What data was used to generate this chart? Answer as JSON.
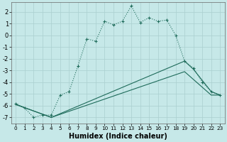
{
  "xlabel": "Humidex (Indice chaleur)",
  "bg_color": "#c6e8e8",
  "grid_color": "#aacfcf",
  "line_color": "#1e6b5a",
  "xlim": [
    -0.5,
    23.5
  ],
  "ylim": [
    -7.5,
    2.8
  ],
  "yticks": [
    2,
    1,
    0,
    -1,
    -2,
    -3,
    -4,
    -5,
    -6,
    -7
  ],
  "xticks": [
    0,
    1,
    2,
    3,
    4,
    5,
    6,
    7,
    8,
    9,
    10,
    11,
    12,
    13,
    14,
    15,
    16,
    17,
    18,
    19,
    20,
    21,
    22,
    23
  ],
  "line1_x": [
    0,
    1,
    2,
    3,
    4,
    5,
    6,
    7,
    8,
    9,
    10,
    11,
    12,
    13,
    14,
    15,
    16,
    17,
    18,
    19,
    20,
    21,
    22,
    23
  ],
  "line1_y": [
    -5.8,
    -6.2,
    -7.0,
    -6.8,
    -6.8,
    -5.1,
    -4.8,
    -2.6,
    -0.3,
    -0.5,
    1.2,
    0.9,
    1.2,
    2.5,
    1.1,
    1.5,
    1.2,
    1.3,
    0.0,
    -2.2,
    -2.8,
    -4.0,
    -4.8,
    -5.1
  ],
  "line2_x": [
    0,
    4,
    19,
    20,
    22,
    23
  ],
  "line2_y": [
    -5.9,
    -7.0,
    -2.2,
    -2.9,
    -4.8,
    -5.1
  ],
  "line3_x": [
    0,
    4,
    19,
    22,
    23
  ],
  "line3_y": [
    -5.9,
    -7.0,
    -3.1,
    -5.1,
    -5.1
  ]
}
